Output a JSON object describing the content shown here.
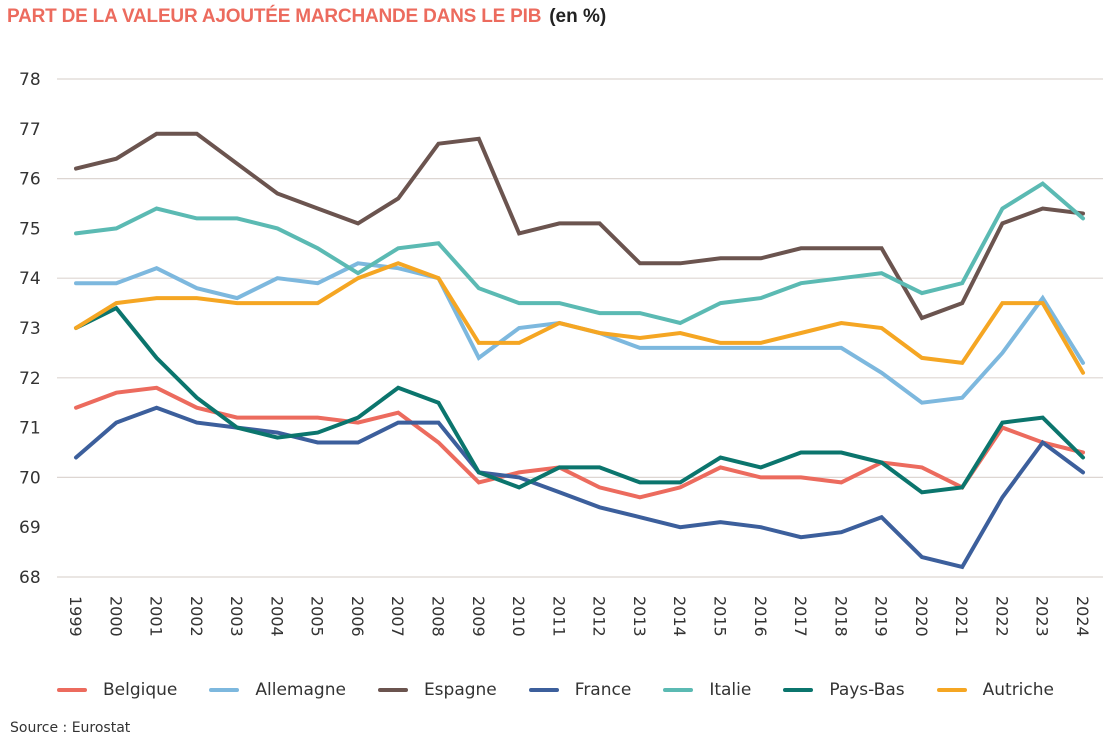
{
  "header": {
    "title": "PART DE LA VALEUR AJOUTÉE MARCHANDE DANS LE PIB",
    "unit": "(en %)",
    "title_color": "#EC6B5E"
  },
  "source": "Source : Eurostat",
  "chart_data": {
    "type": "line",
    "title": "PART DE LA VALEUR AJOUTÉE MARCHANDE DANS LE PIB (en %)",
    "xlabel": "",
    "ylabel": "",
    "ylim": [
      68,
      78
    ],
    "yticks": [
      "68",
      "69",
      "70",
      "71",
      "72",
      "73",
      "74",
      "75",
      "76",
      "77",
      "78"
    ],
    "ytick_values": [
      68,
      69,
      70,
      71,
      72,
      73,
      74,
      75,
      76,
      77,
      78
    ],
    "gridlines": [
      68,
      70,
      72,
      74,
      76,
      78
    ],
    "grid": true,
    "legend_position": "bottom",
    "x": [
      "1999",
      "2000",
      "2001",
      "2002",
      "2003",
      "2004",
      "2005",
      "2006",
      "2007",
      "2008",
      "2009",
      "2010",
      "2011",
      "2012",
      "2013",
      "2014",
      "2015",
      "2016",
      "2017",
      "2018",
      "2019",
      "2020",
      "2021",
      "2022",
      "2023",
      "2024"
    ],
    "series": [
      {
        "name": "Belgique",
        "color": "#EC6B5E",
        "values": [
          71.4,
          71.7,
          71.8,
          71.4,
          71.2,
          71.2,
          71.2,
          71.1,
          71.3,
          70.7,
          69.9,
          70.1,
          70.2,
          69.8,
          69.6,
          69.8,
          70.2,
          70.0,
          70.0,
          69.9,
          70.3,
          70.2,
          69.8,
          71.0,
          70.7,
          70.5
        ]
      },
      {
        "name": "Allemagne",
        "color": "#7DB8DE",
        "values": [
          73.9,
          73.9,
          74.2,
          73.8,
          73.6,
          74.0,
          73.9,
          74.3,
          74.2,
          74.0,
          72.4,
          73.0,
          73.1,
          72.9,
          72.6,
          72.6,
          72.6,
          72.6,
          72.6,
          72.6,
          72.1,
          71.5,
          71.6,
          72.5,
          73.6,
          72.3
        ]
      },
      {
        "name": "Espagne",
        "color": "#6B544F",
        "values": [
          76.2,
          76.4,
          76.9,
          76.9,
          76.3,
          75.7,
          75.4,
          75.1,
          75.6,
          76.7,
          76.8,
          74.9,
          75.1,
          75.1,
          74.3,
          74.3,
          74.4,
          74.4,
          74.6,
          74.6,
          74.6,
          73.2,
          73.5,
          75.1,
          75.4,
          75.3
        ]
      },
      {
        "name": "France",
        "color": "#3C5F9C",
        "values": [
          70.4,
          71.1,
          71.4,
          71.1,
          71.0,
          70.9,
          70.7,
          70.7,
          71.1,
          71.1,
          70.1,
          70.0,
          69.7,
          69.4,
          69.2,
          69.0,
          69.1,
          69.0,
          68.8,
          68.9,
          69.2,
          68.4,
          68.2,
          69.6,
          70.7,
          70.1
        ]
      },
      {
        "name": "Italie",
        "color": "#5BBAB3",
        "values": [
          74.9,
          75.0,
          75.4,
          75.2,
          75.2,
          75.0,
          74.6,
          74.1,
          74.6,
          74.7,
          73.8,
          73.5,
          73.5,
          73.3,
          73.3,
          73.1,
          73.5,
          73.6,
          73.9,
          74.0,
          74.1,
          73.7,
          73.9,
          75.4,
          75.9,
          75.2
        ]
      },
      {
        "name": "Pays-Bas",
        "color": "#0B756D",
        "values": [
          73.0,
          73.4,
          72.4,
          71.6,
          71.0,
          70.8,
          70.9,
          71.2,
          71.8,
          71.5,
          70.1,
          69.8,
          70.2,
          70.2,
          69.9,
          69.9,
          70.4,
          70.2,
          70.5,
          70.5,
          70.3,
          69.7,
          69.8,
          71.1,
          71.2,
          70.4
        ]
      },
      {
        "name": "Autriche",
        "color": "#F5A623",
        "values": [
          73.0,
          73.5,
          73.6,
          73.6,
          73.5,
          73.5,
          73.5,
          74.0,
          74.3,
          74.0,
          72.7,
          72.7,
          73.1,
          72.9,
          72.8,
          72.9,
          72.7,
          72.7,
          72.9,
          73.1,
          73.0,
          72.4,
          72.3,
          73.5,
          73.5,
          72.1
        ]
      }
    ]
  }
}
